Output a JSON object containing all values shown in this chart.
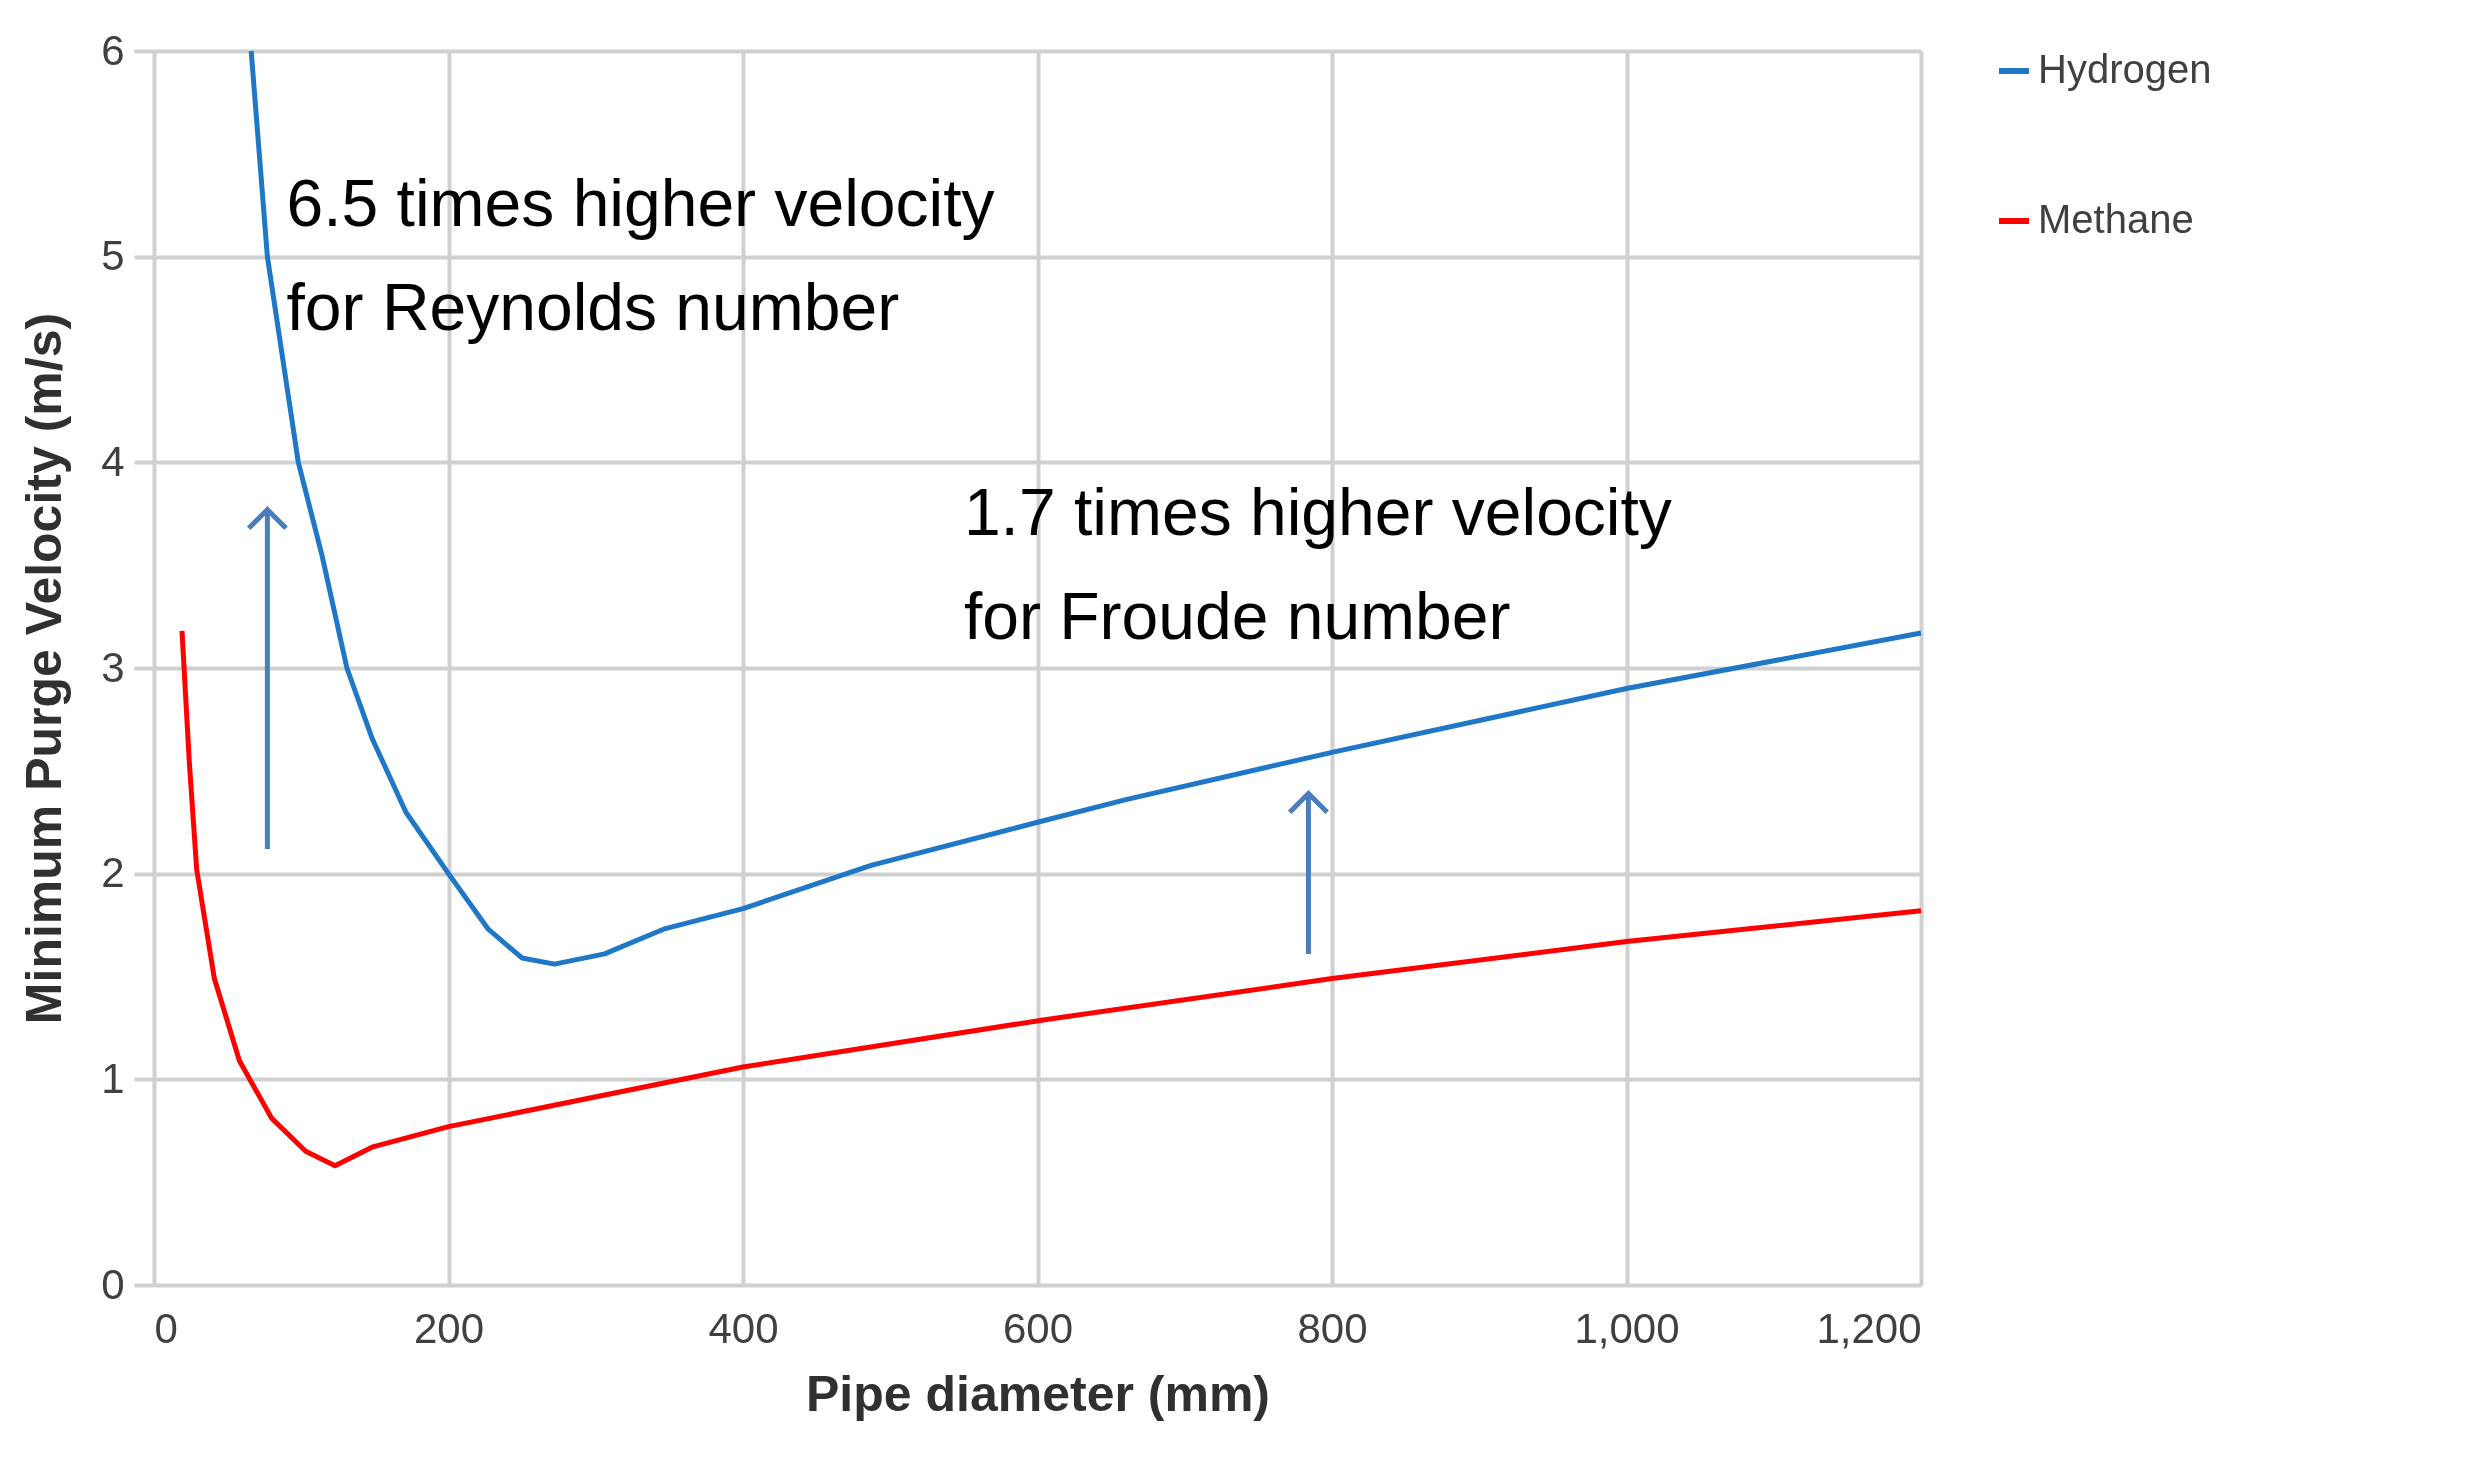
{
  "chart_data": {
    "type": "line",
    "xlabel": "Pipe diameter (mm)",
    "ylabel": "Minimum Purge Velocity (m/s)",
    "xlim": [
      0,
      1200
    ],
    "ylim": [
      0,
      6
    ],
    "xticks": [
      0,
      200,
      400,
      600,
      800,
      {
        "value": 1000,
        "label": "1,000"
      },
      {
        "value": 1200,
        "label": "1,200"
      }
    ],
    "yticks": [
      0,
      1,
      2,
      3,
      4,
      5,
      6
    ],
    "grid": true,
    "legend": "right",
    "line_style": "solid",
    "marker": "none",
    "annotations": [
      "6.5 times higher velocity\nfor Reynolds number",
      "1.7 times higher velocity\nfor Froude number"
    ],
    "series": [
      {
        "name": "Hydrogen",
        "color": "#1f77c8",
        "x": [
          66,
          77,
          98,
          114,
          131,
          148,
          171,
          200,
          227,
          250,
          272,
          306,
          346,
          400,
          487,
          600,
          660,
          800,
          1000,
          1200
        ],
        "values": [
          6,
          5,
          4,
          3.55,
          3,
          2.66,
          2.3,
          2.0,
          1.73,
          1.59,
          1.56,
          1.61,
          1.73,
          1.83,
          2.04,
          2.25,
          2.36,
          2.59,
          2.9,
          3.17
        ]
      },
      {
        "name": "Methane",
        "color": "#ff0000",
        "x": [
          19,
          24,
          29,
          41,
          58,
          80,
          103,
          123,
          148,
          200,
          400,
          605,
          800,
          1000,
          1200
        ],
        "values": [
          3.18,
          2.54,
          2.02,
          1.49,
          1.09,
          0.81,
          0.65,
          0.58,
          0.67,
          0.77,
          1.06,
          1.29,
          1.49,
          1.67,
          1.82
        ]
      }
    ]
  }
}
